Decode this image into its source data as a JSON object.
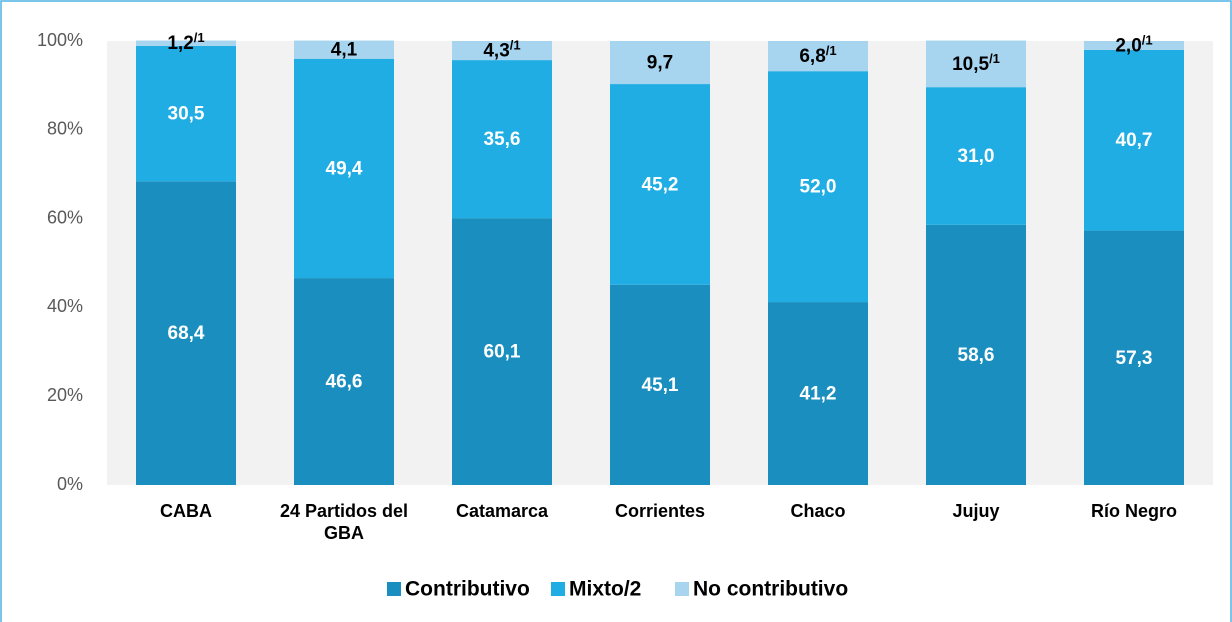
{
  "chart_data": {
    "type": "stacked_bar",
    "categories": [
      "CABA",
      "24 Partidos del GBA",
      "Catamarca",
      "Corrientes",
      "Chaco",
      "Jujuy",
      "Río Negro"
    ],
    "series": [
      {
        "name": "Contributivo",
        "color": "#1a8fbf",
        "values": [
          68.4,
          46.6,
          60.1,
          45.1,
          41.2,
          58.6,
          57.3
        ],
        "value_labels": [
          "68,4",
          "46,6",
          "60,1",
          "45,1",
          "41,2",
          "58,6",
          "57,3"
        ]
      },
      {
        "name": "Mixto/2",
        "color": "#1fade3",
        "values": [
          30.5,
          49.4,
          35.6,
          45.2,
          52.0,
          31.0,
          40.7
        ],
        "value_labels": [
          "30,5",
          "49,4",
          "35,6",
          "45,2",
          "52,0",
          "31,0",
          "40,7"
        ]
      },
      {
        "name": "No contributivo",
        "color": "#a7d5f0",
        "values": [
          1.2,
          4.1,
          4.3,
          9.7,
          6.8,
          10.5,
          2.0
        ],
        "value_labels": [
          "1,2",
          "4,1",
          "4,3",
          "9,7",
          "6,8",
          "10,5",
          "2,0"
        ],
        "value_notes": [
          "/1",
          null,
          "/1",
          null,
          "/1",
          "/1",
          "/1"
        ]
      }
    ],
    "ylim": [
      0,
      100
    ],
    "yticks": [
      {
        "value": 0,
        "label": "0%"
      },
      {
        "value": 20,
        "label": "20%"
      },
      {
        "value": 40,
        "label": "40%"
      },
      {
        "value": 60,
        "label": "60%"
      },
      {
        "value": 80,
        "label": "80%"
      },
      {
        "value": 100,
        "label": "100%"
      }
    ],
    "grid": false,
    "legend": "bottom"
  }
}
